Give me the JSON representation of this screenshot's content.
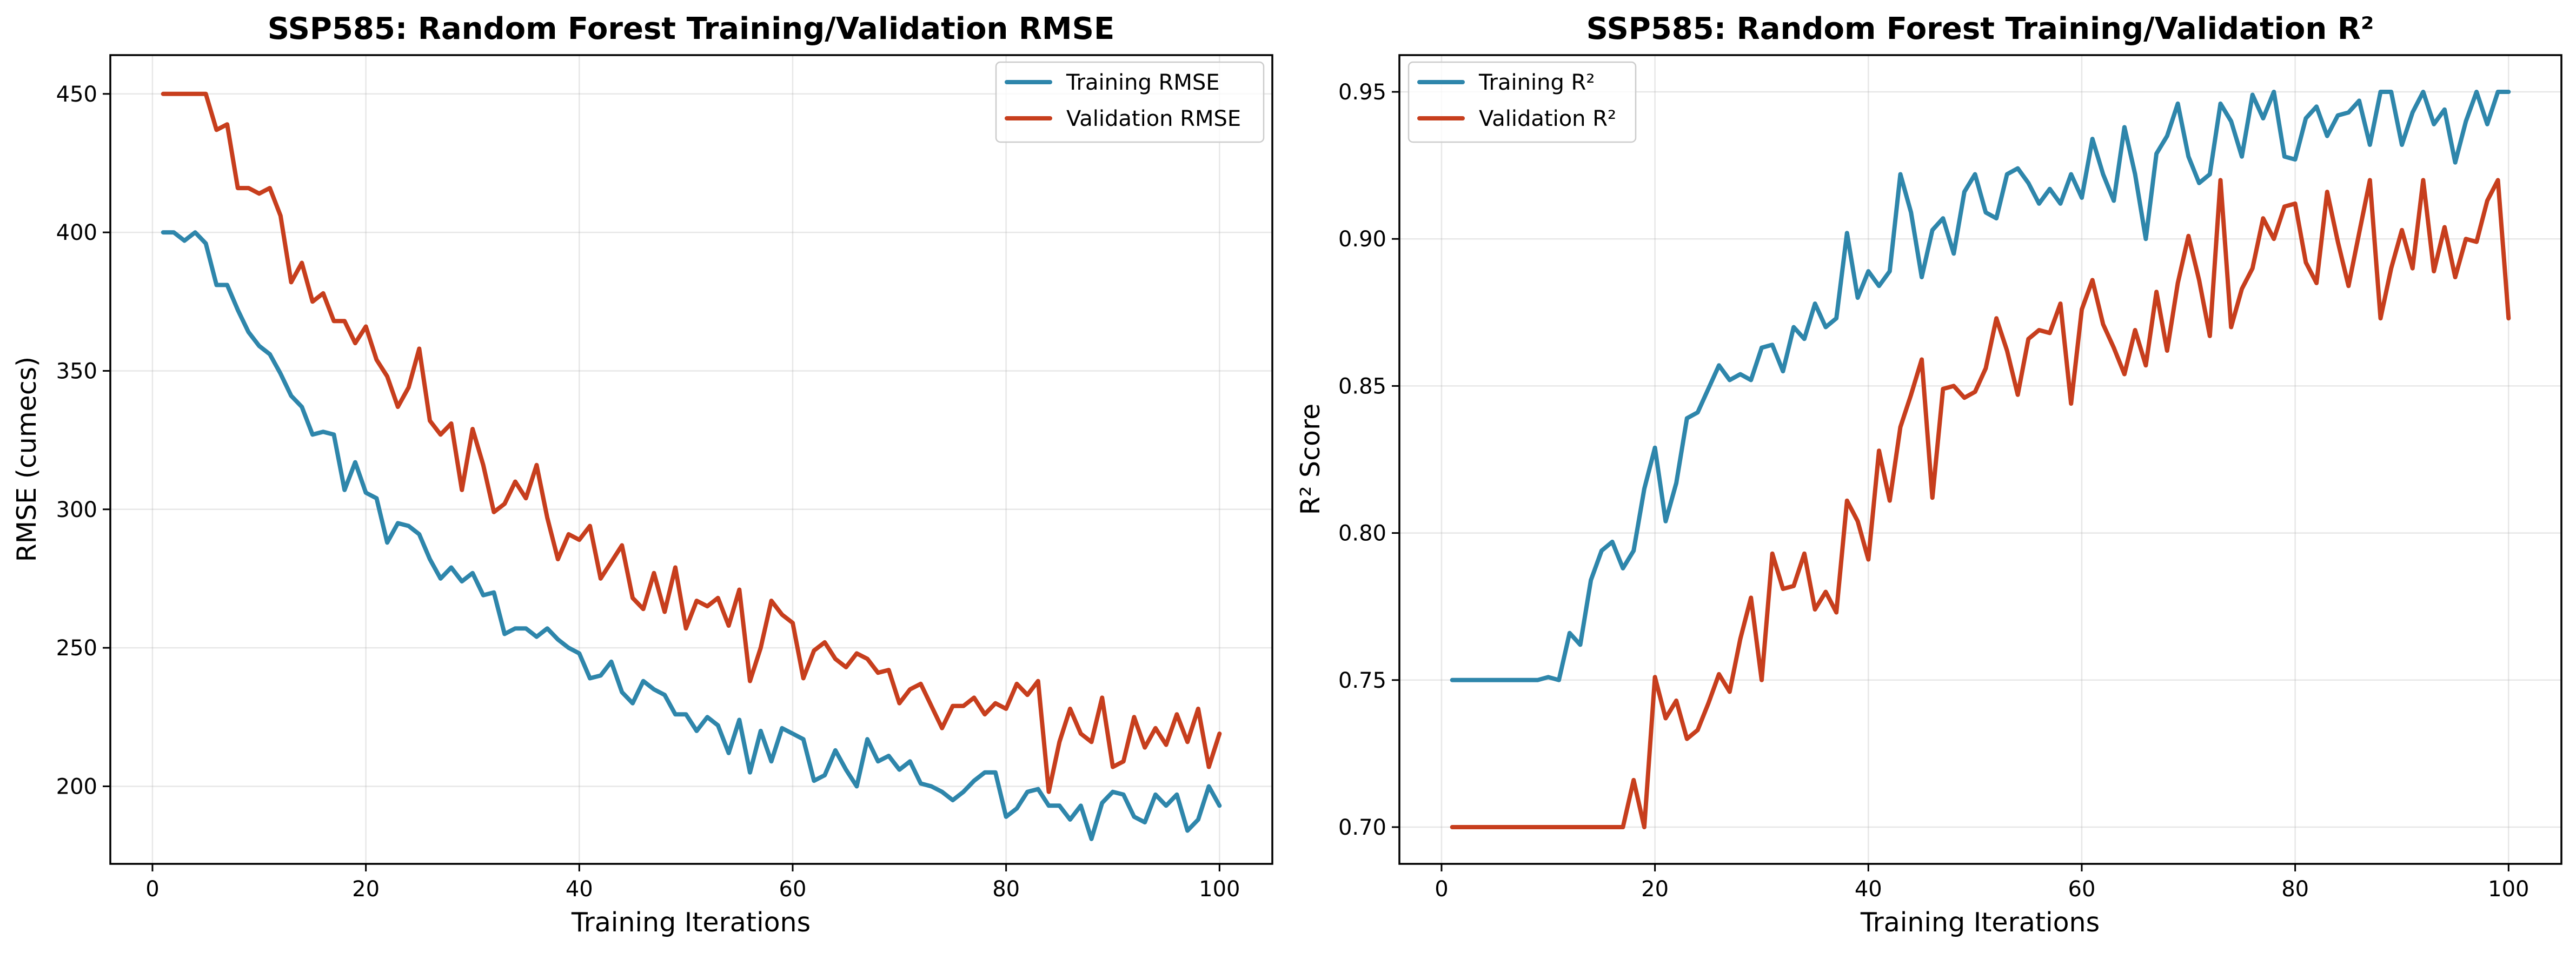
{
  "chart_data": [
    {
      "type": "line",
      "title": "SSP585: Random Forest Training/Validation RMSE",
      "xlabel": "Training Iterations",
      "ylabel": "RMSE (cumecs)",
      "xlim": [
        -3.95,
        104.95
      ],
      "ylim": [
        172,
        464
      ],
      "xticks": [
        0,
        20,
        40,
        60,
        80,
        100
      ],
      "yticks": [
        200,
        250,
        300,
        350,
        400,
        450
      ],
      "grid": true,
      "legend_position": "top-right",
      "x": [
        1,
        2,
        3,
        4,
        5,
        6,
        7,
        8,
        9,
        10,
        11,
        12,
        13,
        14,
        15,
        16,
        17,
        18,
        19,
        20,
        21,
        22,
        23,
        24,
        25,
        26,
        27,
        28,
        29,
        30,
        31,
        32,
        33,
        34,
        35,
        36,
        37,
        38,
        39,
        40,
        41,
        42,
        43,
        44,
        45,
        46,
        47,
        48,
        49,
        50,
        51,
        52,
        53,
        54,
        55,
        56,
        57,
        58,
        59,
        60,
        61,
        62,
        63,
        64,
        65,
        66,
        67,
        68,
        69,
        70,
        71,
        72,
        73,
        74,
        75,
        76,
        77,
        78,
        79,
        80,
        81,
        82,
        83,
        84,
        85,
        86,
        87,
        88,
        89,
        90,
        91,
        92,
        93,
        94,
        95,
        96,
        97,
        98,
        99,
        100
      ],
      "series": [
        {
          "name": "Training RMSE",
          "color": "#2e86ab",
          "values": [
            400,
            400,
            397,
            400,
            396,
            381,
            381,
            372,
            364,
            359,
            356,
            349,
            341,
            337,
            327,
            328,
            327,
            307,
            317,
            306,
            304,
            288,
            295,
            294,
            291,
            282,
            275,
            279,
            274,
            277,
            269,
            270,
            255,
            257,
            257,
            254,
            257,
            253,
            250,
            248,
            239,
            240,
            245,
            234,
            230,
            238,
            235,
            233,
            226,
            226,
            220,
            225,
            222,
            212,
            224,
            205,
            220,
            209,
            221,
            219,
            217,
            202,
            204,
            213,
            206,
            200,
            217,
            209,
            211,
            206,
            209,
            201,
            200,
            198,
            195,
            198,
            202,
            205,
            205,
            189,
            192,
            198,
            199,
            193,
            193,
            188,
            193,
            181,
            194,
            198,
            197,
            189,
            187,
            197,
            193,
            197,
            184,
            188,
            200,
            193
          ]
        },
        {
          "name": "Validation RMSE",
          "color": "#c73e1d",
          "values": [
            450,
            450,
            450,
            450,
            450,
            437,
            439,
            416,
            416,
            414,
            416,
            406,
            382,
            389,
            375,
            378,
            368,
            368,
            360,
            366,
            354,
            348,
            337,
            344,
            358,
            332,
            327,
            331,
            307,
            329,
            316,
            299,
            302,
            310,
            304,
            316,
            297,
            282,
            291,
            289,
            294,
            275,
            281,
            287,
            268,
            264,
            277,
            263,
            279,
            257,
            267,
            265,
            268,
            258,
            271,
            238,
            250,
            267,
            262,
            259,
            239,
            249,
            252,
            246,
            243,
            248,
            246,
            241,
            242,
            230,
            235,
            237,
            229,
            221,
            229,
            229,
            232,
            226,
            230,
            228,
            237,
            233,
            238,
            198,
            216,
            228,
            219,
            216,
            232,
            207,
            209,
            225,
            214,
            221,
            215,
            226,
            216,
            228,
            207,
            219
          ]
        }
      ]
    },
    {
      "type": "line",
      "title": "SSP585: Random Forest Training/Validation R²",
      "xlabel": "Training Iterations",
      "ylabel": "R² Score",
      "xlim": [
        -3.95,
        104.95
      ],
      "ylim": [
        0.6875,
        0.9625
      ],
      "xticks": [
        0,
        20,
        40,
        60,
        80,
        100
      ],
      "yticks": [
        0.7,
        0.75,
        0.8,
        0.85,
        0.9,
        0.95
      ],
      "ytick_labels": [
        "0.70",
        "0.75",
        "0.80",
        "0.85",
        "0.90",
        "0.95"
      ],
      "grid": true,
      "legend_position": "top-left",
      "x": [
        1,
        2,
        3,
        4,
        5,
        6,
        7,
        8,
        9,
        10,
        11,
        12,
        13,
        14,
        15,
        16,
        17,
        18,
        19,
        20,
        21,
        22,
        23,
        24,
        25,
        26,
        27,
        28,
        29,
        30,
        31,
        32,
        33,
        34,
        35,
        36,
        37,
        38,
        39,
        40,
        41,
        42,
        43,
        44,
        45,
        46,
        47,
        48,
        49,
        50,
        51,
        52,
        53,
        54,
        55,
        56,
        57,
        58,
        59,
        60,
        61,
        62,
        63,
        64,
        65,
        66,
        67,
        68,
        69,
        70,
        71,
        72,
        73,
        74,
        75,
        76,
        77,
        78,
        79,
        80,
        81,
        82,
        83,
        84,
        85,
        86,
        87,
        88,
        89,
        90,
        91,
        92,
        93,
        94,
        95,
        96,
        97,
        98,
        99,
        100
      ],
      "series": [
        {
          "name": "Training R²",
          "color": "#2e86ab",
          "values": [
            0.75,
            0.75,
            0.75,
            0.75,
            0.75,
            0.75,
            0.75,
            0.75,
            0.75,
            0.751,
            0.75,
            0.766,
            0.762,
            0.784,
            0.794,
            0.797,
            0.788,
            0.794,
            0.815,
            0.829,
            0.804,
            0.817,
            0.839,
            0.841,
            0.849,
            0.857,
            0.852,
            0.854,
            0.852,
            0.863,
            0.864,
            0.855,
            0.87,
            0.866,
            0.878,
            0.87,
            0.873,
            0.902,
            0.88,
            0.889,
            0.884,
            0.889,
            0.922,
            0.909,
            0.887,
            0.903,
            0.907,
            0.895,
            0.916,
            0.922,
            0.909,
            0.907,
            0.922,
            0.924,
            0.919,
            0.912,
            0.917,
            0.912,
            0.922,
            0.914,
            0.934,
            0.922,
            0.913,
            0.938,
            0.922,
            0.9,
            0.929,
            0.935,
            0.946,
            0.928,
            0.919,
            0.922,
            0.946,
            0.94,
            0.928,
            0.949,
            0.941,
            0.95,
            0.928,
            0.927,
            0.941,
            0.945,
            0.935,
            0.942,
            0.943,
            0.947,
            0.932,
            0.95,
            0.95,
            0.932,
            0.943,
            0.95,
            0.939,
            0.944,
            0.926,
            0.94,
            0.95,
            0.939,
            0.95,
            0.95
          ]
        },
        {
          "name": "Validation R²",
          "color": "#c73e1d",
          "values": [
            0.7,
            0.7,
            0.7,
            0.7,
            0.7,
            0.7,
            0.7,
            0.7,
            0.7,
            0.7,
            0.7,
            0.7,
            0.7,
            0.7,
            0.7,
            0.7,
            0.7,
            0.716,
            0.7,
            0.751,
            0.737,
            0.743,
            0.73,
            0.733,
            0.742,
            0.752,
            0.746,
            0.764,
            0.778,
            0.75,
            0.793,
            0.781,
            0.782,
            0.793,
            0.774,
            0.78,
            0.773,
            0.811,
            0.804,
            0.791,
            0.828,
            0.811,
            0.836,
            0.847,
            0.859,
            0.812,
            0.849,
            0.85,
            0.846,
            0.848,
            0.856,
            0.873,
            0.862,
            0.847,
            0.866,
            0.869,
            0.868,
            0.878,
            0.844,
            0.876,
            0.886,
            0.871,
            0.863,
            0.854,
            0.869,
            0.857,
            0.882,
            0.862,
            0.885,
            0.901,
            0.886,
            0.867,
            0.92,
            0.87,
            0.883,
            0.89,
            0.907,
            0.9,
            0.911,
            0.912,
            0.892,
            0.885,
            0.916,
            0.899,
            0.884,
            0.902,
            0.92,
            0.873,
            0.89,
            0.903,
            0.89,
            0.92,
            0.889,
            0.904,
            0.887,
            0.9,
            0.899,
            0.913,
            0.92,
            0.873
          ]
        }
      ]
    }
  ]
}
